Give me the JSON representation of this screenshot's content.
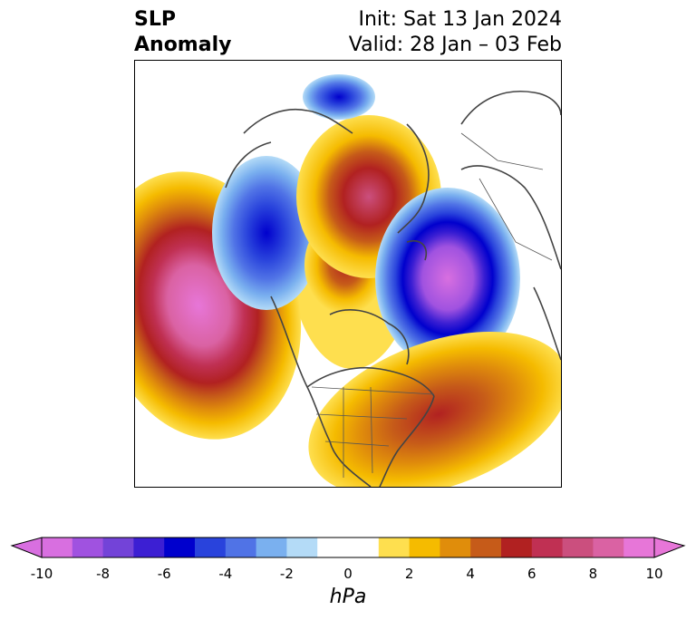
{
  "title": {
    "line1": "SLP",
    "line2": "Anomaly"
  },
  "init": {
    "line1": "Init: Sat 13 Jan 2024",
    "line2": "Valid: 28 Jan – 03 Feb"
  },
  "map": {
    "projection": "north-polar",
    "field": "sea-level-pressure-anomaly",
    "features": [
      "strong positive anomaly over north Pacific",
      "negative anomaly over Alaska / Bering",
      "positive anomaly over Greenland / Arctic",
      "strong negative anomaly over Scandinavia / northern Europe",
      "positive anomaly over eastern US / western Atlantic"
    ]
  },
  "colorbar": {
    "unit": "hPa",
    "min": -10,
    "max": 10,
    "step": 1,
    "extend": "both",
    "colors": [
      "#d86fe0",
      "#a052e0",
      "#7343d8",
      "#3c1fd3",
      "#0000cd",
      "#2943dc",
      "#5073e6",
      "#7ab0ef",
      "#b4dbf7",
      "#ffffff",
      "#ffffff",
      "#fedf4f",
      "#f5bb00",
      "#e08d0b",
      "#c65b19",
      "#b12121",
      "#c03053",
      "#cb4f7e",
      "#da62a3",
      "#e776d8"
    ],
    "ticks": [
      "-10",
      "-8",
      "-6",
      "-4",
      "-2",
      "0",
      "2",
      "4",
      "6",
      "8",
      "10"
    ]
  }
}
